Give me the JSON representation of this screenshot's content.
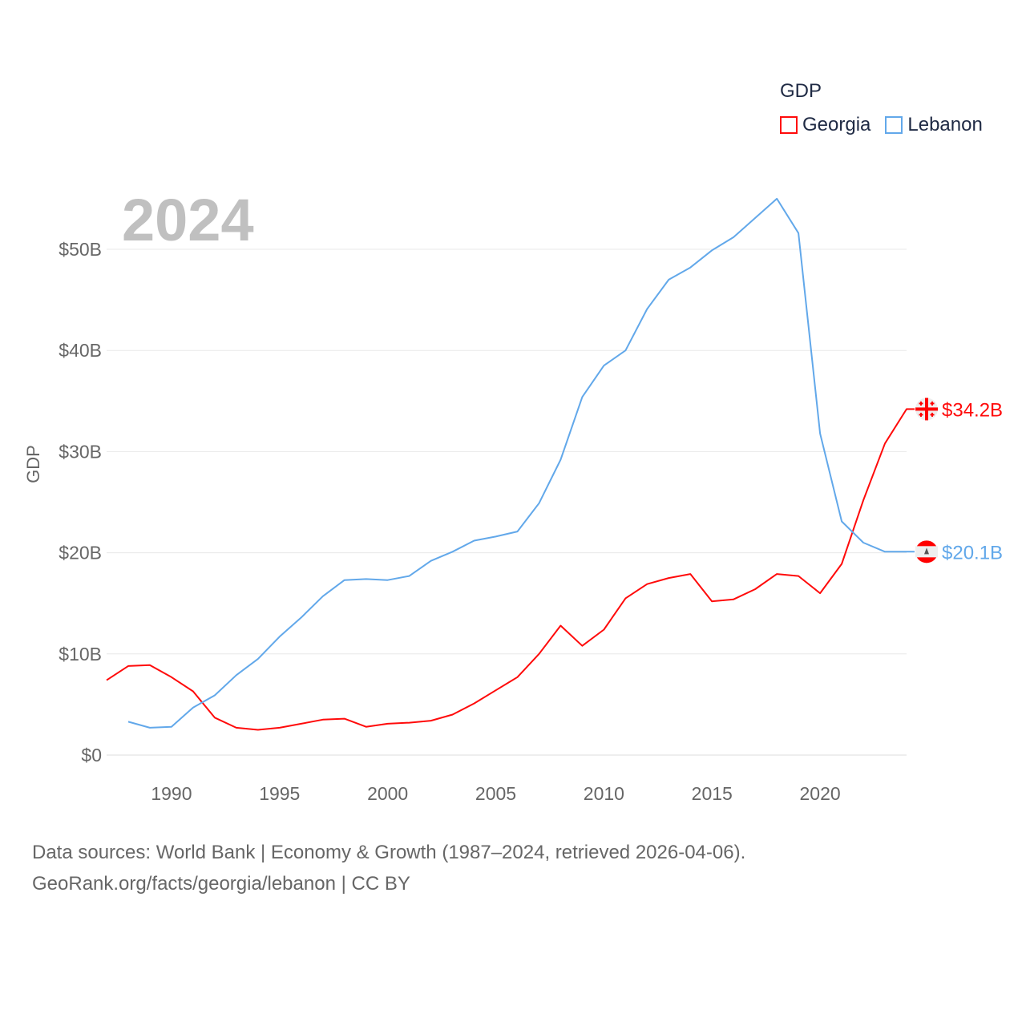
{
  "chart_data": {
    "type": "line",
    "title": "GDP",
    "xlabel": "",
    "ylabel": "GDP",
    "current_year": "2024",
    "xlim": [
      1987,
      2024
    ],
    "ylim": [
      0,
      55
    ],
    "x_ticks": [
      1990,
      1995,
      2000,
      2005,
      2010,
      2015,
      2020
    ],
    "y_ticks": [
      {
        "value": 0,
        "label": "$0"
      },
      {
        "value": 10,
        "label": "$10B"
      },
      {
        "value": 20,
        "label": "$20B"
      },
      {
        "value": 30,
        "label": "$30B"
      },
      {
        "value": 40,
        "label": "$40B"
      },
      {
        "value": 50,
        "label": "$50B"
      }
    ],
    "grid": true,
    "legend_placement": "top-right",
    "units": "billion USD",
    "series": [
      {
        "name": "Georgia",
        "color": "#ff0a0a",
        "end_label": "$34.2B",
        "flag": "georgia",
        "x": [
          1987,
          1988,
          1989,
          1990,
          1991,
          1992,
          1993,
          1994,
          1995,
          1996,
          1997,
          1998,
          1999,
          2000,
          2001,
          2002,
          2003,
          2004,
          2005,
          2006,
          2007,
          2008,
          2009,
          2010,
          2011,
          2012,
          2013,
          2014,
          2015,
          2016,
          2017,
          2018,
          2019,
          2020,
          2021,
          2022,
          2023,
          2024
        ],
        "values": [
          7.4,
          8.8,
          8.9,
          7.7,
          6.3,
          3.7,
          2.7,
          2.5,
          2.7,
          3.1,
          3.5,
          3.6,
          2.8,
          3.1,
          3.2,
          3.4,
          4.0,
          5.1,
          6.4,
          7.7,
          10.0,
          12.8,
          10.8,
          12.4,
          15.5,
          16.9,
          17.5,
          17.9,
          15.2,
          15.4,
          16.4,
          17.9,
          17.7,
          16.0,
          18.9,
          25.2,
          30.8,
          34.2
        ]
      },
      {
        "name": "Lebanon",
        "color": "#62a8ea",
        "end_label": "$20.1B",
        "flag": "lebanon",
        "x": [
          1988,
          1989,
          1990,
          1991,
          1992,
          1993,
          1994,
          1995,
          1996,
          1997,
          1998,
          1999,
          2000,
          2001,
          2002,
          2003,
          2004,
          2005,
          2006,
          2007,
          2008,
          2009,
          2010,
          2011,
          2012,
          2013,
          2014,
          2015,
          2016,
          2017,
          2018,
          2019,
          2020,
          2021,
          2022,
          2023,
          2024
        ],
        "values": [
          3.3,
          2.7,
          2.8,
          4.7,
          5.9,
          7.9,
          9.5,
          11.7,
          13.6,
          15.7,
          17.3,
          17.4,
          17.3,
          17.7,
          19.2,
          20.1,
          21.2,
          21.6,
          22.1,
          24.9,
          29.2,
          35.4,
          38.5,
          40.0,
          44.1,
          47.0,
          48.2,
          49.9,
          51.2,
          53.1,
          55.0,
          51.6,
          31.8,
          23.1,
          21.0,
          20.1,
          20.1
        ]
      }
    ]
  },
  "footer": {
    "line1": "Data sources: World Bank | Economy & Growth (1987–2024, retrieved 2026-04-06).",
    "line2": "GeoRank.org/facts/georgia/lebanon | CC BY"
  }
}
